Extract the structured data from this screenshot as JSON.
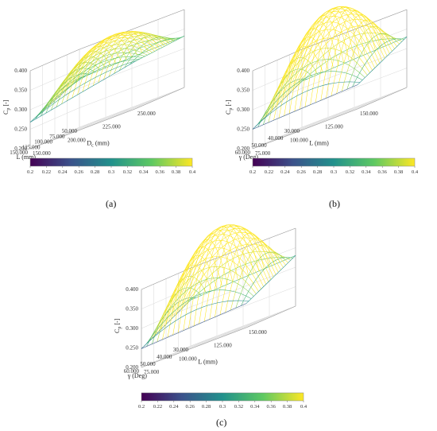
{
  "colorbar": {
    "min": 0.2,
    "max": 0.4,
    "ticks": [
      "0.2",
      "0.22",
      "0.24",
      "0.26",
      "0.28",
      "0.3",
      "0.32",
      "0.34",
      "0.36",
      "0.38",
      "0.4"
    ],
    "colormap": [
      "#440154",
      "#3b528b",
      "#21918c",
      "#5ec962",
      "#fde725"
    ],
    "colormap_name": "viridis"
  },
  "chart_data": [
    {
      "type": "surface3d",
      "caption": "(a)",
      "zlabel": "C",
      "zlabel_sub": "p",
      "zlabel_unit": "[-]",
      "xlabel": "L (mm)",
      "ylabel": "D",
      "ylabel_sub": "c",
      "ylabel_unit": "(mm)",
      "z_ticks": [
        "0.200",
        "0.250",
        "0.300",
        "0.350",
        "0.400"
      ],
      "x_ticks": [
        "50.000",
        "75.000",
        "100.000",
        "125.000",
        "150.000"
      ],
      "y_ticks": [
        "150.000",
        "200.000",
        "225.000",
        "250.000"
      ],
      "zlim": [
        0.2,
        0.4
      ],
      "surface_corners": {
        "near_left": 0.268,
        "back_left": 0.325,
        "back_right": 0.332,
        "near_right": 0.322,
        "center": 0.338
      }
    },
    {
      "type": "surface3d",
      "caption": "(b)",
      "zlabel": "C",
      "zlabel_sub": "p",
      "zlabel_unit": "[-]",
      "xlabel": "γ (Deg)",
      "ylabel": "L (mm)",
      "ylabel_sub": "",
      "ylabel_unit": "",
      "z_ticks": [
        "0.200",
        "0.250",
        "0.300",
        "0.350",
        "0.400"
      ],
      "x_ticks": [
        "30.000",
        "40.000",
        "50.000",
        "60.000"
      ],
      "y_ticks": [
        "75.000",
        "100.000",
        "125.000",
        "150.000"
      ],
      "zlim": [
        0.2,
        0.4
      ],
      "surface_corners": {
        "near_left": 0.25,
        "back_left": 0.318,
        "back_right": 0.33,
        "near_right": 0.262,
        "center": 0.342
      }
    },
    {
      "type": "surface3d",
      "caption": "(c)",
      "zlabel": "C",
      "zlabel_sub": "p",
      "zlabel_unit": "[-]",
      "xlabel": "γ (Deg)",
      "ylabel": "L (mm)",
      "ylabel_sub": "",
      "ylabel_unit": "",
      "z_ticks": [
        "0.200",
        "0.250",
        "0.300",
        "0.350",
        "0.400"
      ],
      "x_ticks": [
        "30.000",
        "40.000",
        "50.000",
        "60.000"
      ],
      "y_ticks": [
        "75.000",
        "100.000",
        "125.000",
        "150.000"
      ],
      "zlim": [
        0.2,
        0.4
      ],
      "surface_corners": {
        "near_left": 0.248,
        "back_left": 0.318,
        "back_right": 0.33,
        "near_right": 0.262,
        "center": 0.342
      }
    }
  ]
}
